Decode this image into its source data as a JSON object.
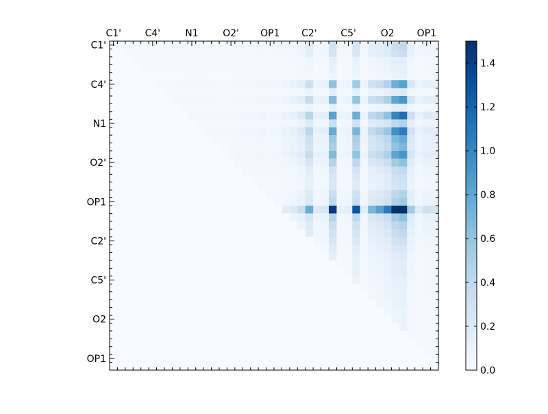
{
  "chart_data": {
    "type": "heatmap",
    "title": "",
    "xlabel": "",
    "ylabel": "",
    "x_tick_labels": [
      "C1'",
      "C4'",
      "N1",
      "O2'",
      "OP1",
      "C2'",
      "C5'",
      "O2",
      "OP1"
    ],
    "y_tick_labels": [
      "C1'",
      "C4'",
      "N1",
      "O2'",
      "OP1",
      "C2'",
      "C5'",
      "O2",
      "OP1"
    ],
    "grid_size": 42,
    "tick_every": 5,
    "triangle": "upper",
    "colormap": [
      "#f7fbff",
      "#deebf7",
      "#c6dbef",
      "#9ecae1",
      "#6baed6",
      "#4292c6",
      "#2171b5",
      "#08519c",
      "#08306b"
    ],
    "colorbar": {
      "min": 0.0,
      "max": 1.5,
      "ticks": [
        0.0,
        0.2,
        0.4,
        0.6,
        0.8,
        1.0,
        1.2,
        1.4
      ],
      "tick_labels": [
        "0.0",
        "0.2",
        "0.4",
        "0.6",
        "0.8",
        "1.0",
        "1.2",
        "1.4"
      ]
    },
    "column_profile": [
      0.02,
      0.03,
      0.04,
      0.03,
      0.04,
      0.03,
      0.03,
      0.02,
      0.03,
      0.03,
      0.04,
      0.04,
      0.03,
      0.03,
      0.02,
      0.03,
      0.04,
      0.05,
      0.05,
      0.07,
      0.05,
      0.06,
      0.1,
      0.13,
      0.22,
      0.5,
      0.12,
      0.15,
      0.95,
      0.08,
      0.1,
      0.85,
      0.1,
      0.45,
      0.55,
      0.7,
      1.15,
      1.3,
      0.35,
      0.12,
      0.2,
      0.18
    ],
    "row_profile": [
      0.25,
      0.22,
      0.1,
      0.08,
      0.06,
      0.55,
      0.12,
      0.6,
      0.1,
      0.75,
      0.3,
      0.7,
      0.5,
      0.45,
      0.6,
      0.4,
      0.25,
      0.2,
      0.18,
      0.3,
      0.35,
      1.3,
      0.4,
      0.3,
      0.25,
      0.2,
      0.15,
      0.12,
      0.1,
      0.1,
      0.08,
      0.07,
      0.07,
      0.06,
      0.05,
      0.05,
      0.05,
      0.04,
      0.03,
      0.02,
      0.02,
      0.01
    ]
  }
}
